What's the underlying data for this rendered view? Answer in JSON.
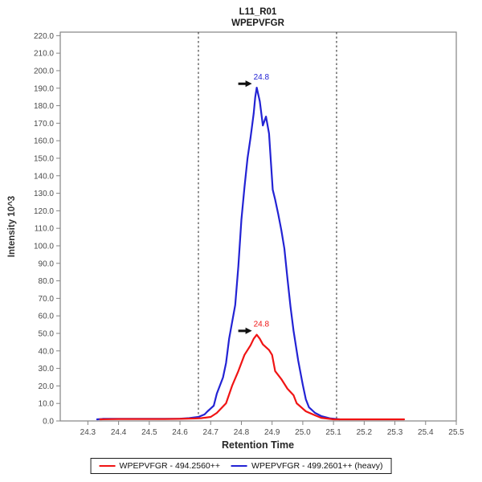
{
  "chart_data": {
    "type": "line",
    "title_line1": "L11_R01",
    "title_line2": "WPEPVFGR",
    "xlabel": "Retention Time",
    "ylabel": "Intensity 10^3",
    "xlim": [
      24.21,
      25.5
    ],
    "ylim": [
      0,
      222
    ],
    "x_ticks": [
      24.3,
      24.4,
      24.5,
      24.6,
      24.7,
      24.8,
      24.9,
      25.0,
      25.1,
      25.2,
      25.3,
      25.4,
      25.5
    ],
    "y_ticks": [
      0,
      10,
      20,
      30,
      40,
      50,
      60,
      70,
      80,
      90,
      100,
      110,
      120,
      130,
      140,
      150,
      160,
      170,
      180,
      190,
      200,
      210,
      220
    ],
    "x_tick_decimals": 1,
    "y_tick_decimals": 1,
    "grid": false,
    "legend_position": "bottom",
    "integration_boundaries_x": [
      24.66,
      25.11
    ],
    "boundary_line_style": "dashed",
    "frame_color": "#848484",
    "boundary_color": "#333333",
    "series": [
      {
        "name": "WPEPVFGR - 494.2560++",
        "color": "#f01414",
        "peak_label": {
          "text": "24.8",
          "at_x": 24.85,
          "at_y": 49.2
        },
        "points": [
          [
            24.34,
            0.9
          ],
          [
            24.4,
            1.1
          ],
          [
            24.45,
            1.1
          ],
          [
            24.5,
            1.1
          ],
          [
            24.55,
            1.1
          ],
          [
            24.6,
            1.2
          ],
          [
            24.65,
            1.4
          ],
          [
            24.67,
            1.6
          ],
          [
            24.7,
            2.3
          ],
          [
            24.72,
            4.6
          ],
          [
            24.75,
            10.1
          ],
          [
            24.77,
            20.2
          ],
          [
            24.79,
            28.5
          ],
          [
            24.81,
            37.7
          ],
          [
            24.83,
            43.2
          ],
          [
            24.84,
            46.9
          ],
          [
            24.85,
            49.2
          ],
          [
            24.86,
            46.9
          ],
          [
            24.87,
            43.7
          ],
          [
            24.89,
            40.5
          ],
          [
            24.9,
            37.7
          ],
          [
            24.91,
            28.5
          ],
          [
            24.93,
            23.9
          ],
          [
            24.95,
            18.4
          ],
          [
            24.97,
            14.7
          ],
          [
            24.98,
            10.1
          ],
          [
            25.01,
            5.5
          ],
          [
            25.04,
            3.2
          ],
          [
            25.06,
            1.8
          ],
          [
            25.1,
            0.9
          ],
          [
            25.15,
            0.9
          ],
          [
            25.2,
            0.9
          ],
          [
            25.25,
            0.9
          ],
          [
            25.33,
            0.9
          ]
        ]
      },
      {
        "name": "WPEPVFGR - 499.2601++ (heavy)",
        "color": "#2323d4",
        "peak_label": {
          "text": "24.8",
          "at_x": 24.85,
          "at_y": 190.3
        },
        "points": [
          [
            24.33,
            0.9
          ],
          [
            24.35,
            1.2
          ],
          [
            24.4,
            1.2
          ],
          [
            24.45,
            1.2
          ],
          [
            24.5,
            1.2
          ],
          [
            24.55,
            1.2
          ],
          [
            24.6,
            1.3
          ],
          [
            24.63,
            1.6
          ],
          [
            24.66,
            2.3
          ],
          [
            24.68,
            3.7
          ],
          [
            24.69,
            5.5
          ],
          [
            24.71,
            8.7
          ],
          [
            24.72,
            15.6
          ],
          [
            24.74,
            24.8
          ],
          [
            24.75,
            33.1
          ],
          [
            24.76,
            46.9
          ],
          [
            24.78,
            66.2
          ],
          [
            24.79,
            88.3
          ],
          [
            24.8,
            114.9
          ],
          [
            24.81,
            133.3
          ],
          [
            24.82,
            149.9
          ],
          [
            24.83,
            161.8
          ],
          [
            24.84,
            175.6
          ],
          [
            24.845,
            184.8
          ],
          [
            24.85,
            190.3
          ],
          [
            24.86,
            182.5
          ],
          [
            24.87,
            168.7
          ],
          [
            24.88,
            173.8
          ],
          [
            24.89,
            164.1
          ],
          [
            24.896,
            148.0
          ],
          [
            24.902,
            132.0
          ],
          [
            24.91,
            126.4
          ],
          [
            24.92,
            118.2
          ],
          [
            24.93,
            109.0
          ],
          [
            24.94,
            98.4
          ],
          [
            24.95,
            81.4
          ],
          [
            24.96,
            65.3
          ],
          [
            24.97,
            51.5
          ],
          [
            24.985,
            34.5
          ],
          [
            25.0,
            20.7
          ],
          [
            25.01,
            12.4
          ],
          [
            25.02,
            7.8
          ],
          [
            25.04,
            4.6
          ],
          [
            25.06,
            2.8
          ],
          [
            25.09,
            1.4
          ],
          [
            25.12,
            0.9
          ]
        ]
      }
    ]
  }
}
